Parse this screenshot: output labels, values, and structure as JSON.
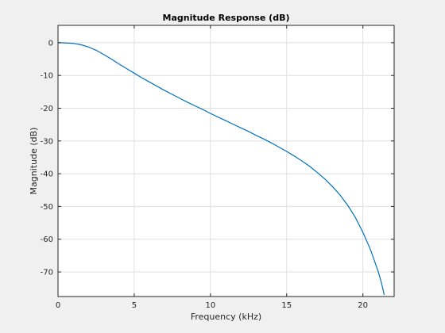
{
  "chart_data": {
    "type": "line",
    "title": "Magnitude Response (dB)",
    "xlabel": "Frequency (kHz)",
    "ylabel": "Magnitude (dB)",
    "xlim": [
      0,
      22.05
    ],
    "ylim": [
      -77.5,
      5.3
    ],
    "xticks": [
      0,
      5,
      10,
      15,
      20
    ],
    "yticks": [
      0,
      -10,
      -20,
      -30,
      -40,
      -50,
      -60,
      -70
    ],
    "grid": true,
    "line_color": "#0072bd",
    "series": [
      {
        "x": [
          0,
          0.5,
          1.0,
          1.5,
          2.0,
          2.5,
          3.0,
          3.5,
          4.0,
          4.5,
          5.0,
          5.5,
          6.0,
          6.5,
          7.0,
          7.5,
          8.0,
          8.5,
          9.0,
          9.5,
          10.0,
          10.5,
          11.0,
          11.5,
          12.0,
          12.5,
          13.0,
          13.5,
          14.0,
          14.5,
          15.0,
          15.5,
          16.0,
          16.5,
          17.0,
          17.5,
          18.0,
          18.5,
          19.0,
          19.5,
          20.0,
          20.5,
          21.0,
          21.2,
          21.4
        ],
        "y": [
          0,
          -0.05,
          -0.2,
          -0.6,
          -1.3,
          -2.3,
          -3.6,
          -5.0,
          -6.5,
          -7.9,
          -9.3,
          -10.7,
          -12.0,
          -13.3,
          -14.6,
          -15.8,
          -17.0,
          -18.2,
          -19.3,
          -20.4,
          -21.6,
          -22.7,
          -23.8,
          -24.9,
          -26.0,
          -27.1,
          -28.3,
          -29.4,
          -30.6,
          -31.9,
          -33.2,
          -34.6,
          -36.1,
          -37.7,
          -39.6,
          -41.6,
          -43.9,
          -46.5,
          -49.6,
          -53.3,
          -57.9,
          -63.2,
          -69.8,
          -73.0,
          -77.0
        ]
      }
    ]
  }
}
